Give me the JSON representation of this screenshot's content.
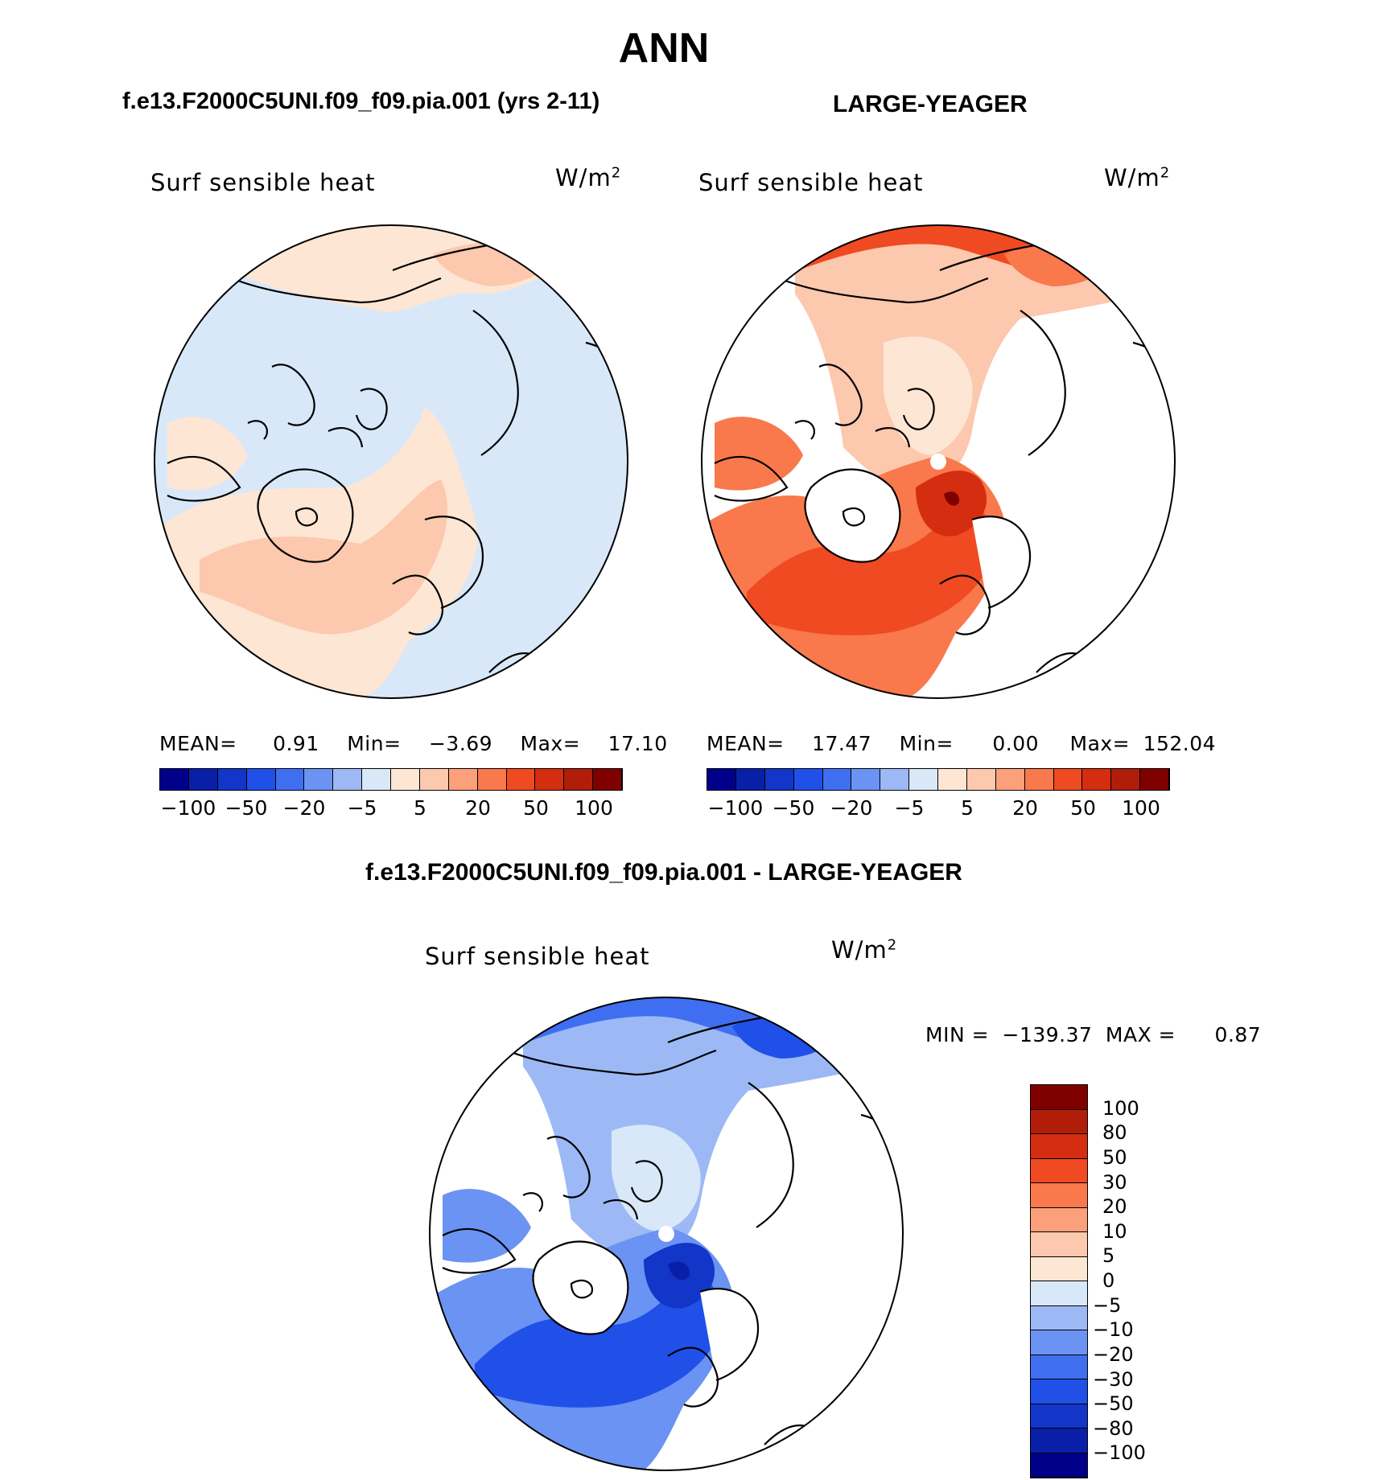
{
  "page_title": "ANN",
  "panels": {
    "left": {
      "case_title": "f.e13.F2000C5UNI.f09_f09.pia.001 (yrs 2-11)",
      "var_label": "Surf  sensible  heat",
      "units": "W/m",
      "units_sup": "2",
      "stats": {
        "mean_label": "MEAN=",
        "mean": "0.91",
        "min_label": "Min=",
        "min": "−3.69",
        "max_label": "Max=",
        "max": "17.10"
      },
      "colorbar_ticks": [
        "−100",
        "−50",
        "−20",
        "−5",
        "5",
        "20",
        "50",
        "100"
      ]
    },
    "right": {
      "case_title": "LARGE-YEAGER",
      "var_label": "Surf  sensible  heat",
      "units": "W/m",
      "units_sup": "2",
      "stats": {
        "mean_label": "MEAN=",
        "mean": "17.47",
        "min_label": "Min=",
        "min": "0.00",
        "max_label": "Max=",
        "max": "152.04"
      },
      "colorbar_ticks": [
        "−100",
        "−50",
        "−20",
        "−5",
        "5",
        "20",
        "50",
        "100"
      ]
    },
    "diff": {
      "case_title": "f.e13.F2000C5UNI.f09_f09.pia.001 - LARGE-YEAGER",
      "var_label": "Surf  sensible  heat",
      "units": "W/m",
      "units_sup": "2",
      "minmax": {
        "min_label": "MIN =",
        "min": "−139.37",
        "max_label": "MAX =",
        "max": "0.87"
      },
      "colorbar_levels": [
        "100",
        "80",
        "50",
        "30",
        "20",
        "10",
        "5",
        "0",
        "−5",
        "−10",
        "−20",
        "−30",
        "−50",
        "−80",
        "−100"
      ]
    }
  },
  "colors": {
    "mean_colorbar": [
      "#00008b",
      "#0a1fa8",
      "#1236c8",
      "#2050e8",
      "#3f6ff0",
      "#6b93f3",
      "#9cb9f5",
      "#d8e8f8",
      "#fde6d4",
      "#fcc8ae",
      "#fba07a",
      "#f9784c",
      "#f04a22",
      "#d52d10",
      "#b01e0a",
      "#800000"
    ],
    "diff_colorbar": [
      "#800000",
      "#b01e0a",
      "#d52d10",
      "#f04a22",
      "#f9784c",
      "#fba07a",
      "#fcc8ae",
      "#fde6d4",
      "#d8e8f8",
      "#9cb9f5",
      "#6b93f3",
      "#3f6ff0",
      "#2050e8",
      "#1236c8",
      "#0a1fa8",
      "#00008b"
    ]
  }
}
